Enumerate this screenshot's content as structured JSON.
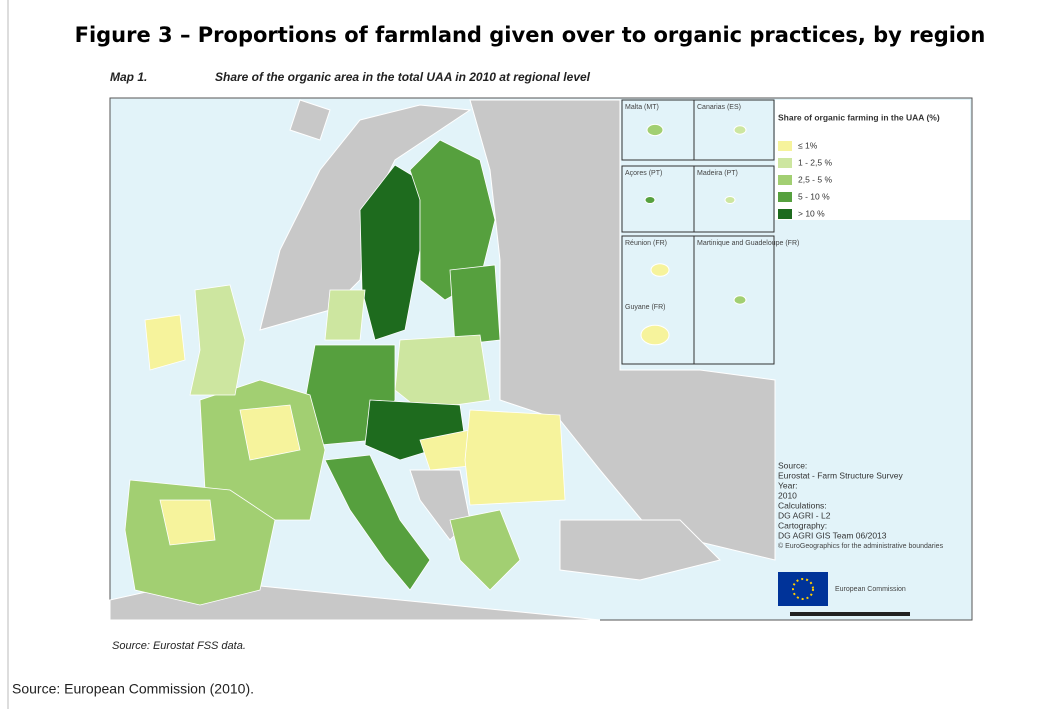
{
  "figure": {
    "title": "Figure 3 – Proportions of farmland given over to organic practices, by region",
    "map_label": "Map 1.",
    "map_title": "Share of the organic area in the total UAA in 2010 at regional level",
    "insets": [
      "Malta (MT)",
      "Canarias (ES)",
      "Açores (PT)",
      "Madeira (PT)",
      "Réunion (FR)",
      "Martinique and Guadeloupe (FR)",
      "Guyane (FR)"
    ],
    "legend": {
      "title": "Share of organic farming in the UAA (%)",
      "items": [
        {
          "label": "≤ 1%",
          "color": "#f6f39c"
        },
        {
          "label": "1 - 2,5 %",
          "color": "#cde6a0"
        },
        {
          "label": "2,5 - 5 %",
          "color": "#a2cf72"
        },
        {
          "label": "5 - 10 %",
          "color": "#56a03e"
        },
        {
          "label": "> 10 %",
          "color": "#1e6b1e"
        }
      ]
    },
    "credits": [
      "Source:",
      "Eurostat - Farm Structure Survey",
      "Year:",
      "2010",
      "Calculations:",
      "DG AGRI - L2",
      "Cartography:",
      "DG AGRI GIS Team 06/2013",
      "© EuroGeographics for the administrative boundaries"
    ],
    "logo_text": "European Commission",
    "map_source": "Source: Eurostat FSS data.",
    "source": "Source: European Commission (2010)."
  }
}
